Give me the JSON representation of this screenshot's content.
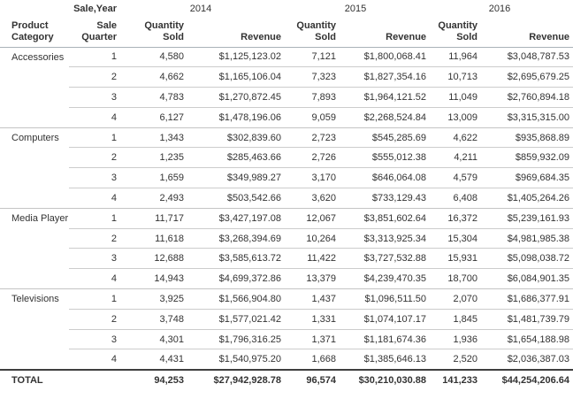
{
  "colors": {
    "text": "#333333",
    "grid_line": "#cccccc",
    "category_line": "#c4c4c4",
    "header_rule": "#a9b2b8",
    "total_rule": "#3f3f3f",
    "bg": "#ffffff"
  },
  "chart_data": {
    "type": "table",
    "row_dimension": "Product Category",
    "column_dimension": "Sale,Year",
    "measures": [
      "Quantity Sold",
      "Revenue"
    ],
    "years": [
      "2014",
      "2015",
      "2016"
    ],
    "headers": {
      "sale_year": "Sale,Year",
      "product_category": "Product\nCategory",
      "sale_quarter": "Sale\nQuarter",
      "quantity_sold": "Quantity\nSold",
      "revenue": "Revenue"
    },
    "categories": [
      {
        "name": "Accessories",
        "rows": [
          {
            "quarter": "1",
            "cells": [
              "4,580",
              "$1,125,123.02",
              "7,121",
              "$1,800,068.41",
              "11,964",
              "$3,048,787.53"
            ]
          },
          {
            "quarter": "2",
            "cells": [
              "4,662",
              "$1,165,106.04",
              "7,323",
              "$1,827,354.16",
              "10,713",
              "$2,695,679.25"
            ]
          },
          {
            "quarter": "3",
            "cells": [
              "4,783",
              "$1,270,872.45",
              "7,893",
              "$1,964,121.52",
              "11,049",
              "$2,760,894.18"
            ]
          },
          {
            "quarter": "4",
            "cells": [
              "6,127",
              "$1,478,196.06",
              "9,059",
              "$2,268,524.84",
              "13,009",
              "$3,315,315.00"
            ]
          }
        ]
      },
      {
        "name": "Computers",
        "rows": [
          {
            "quarter": "1",
            "cells": [
              "1,343",
              "$302,839.60",
              "2,723",
              "$545,285.69",
              "4,622",
              "$935,868.89"
            ]
          },
          {
            "quarter": "2",
            "cells": [
              "1,235",
              "$285,463.66",
              "2,726",
              "$555,012.38",
              "4,211",
              "$859,932.09"
            ]
          },
          {
            "quarter": "3",
            "cells": [
              "1,659",
              "$349,989.27",
              "3,170",
              "$646,064.08",
              "4,579",
              "$969,684.35"
            ]
          },
          {
            "quarter": "4",
            "cells": [
              "2,493",
              "$503,542.66",
              "3,620",
              "$733,129.43",
              "6,408",
              "$1,405,264.26"
            ]
          }
        ]
      },
      {
        "name": "Media Player",
        "rows": [
          {
            "quarter": "1",
            "cells": [
              "11,717",
              "$3,427,197.08",
              "12,067",
              "$3,851,602.64",
              "16,372",
              "$5,239,161.93"
            ]
          },
          {
            "quarter": "2",
            "cells": [
              "11,618",
              "$3,268,394.69",
              "10,264",
              "$3,313,925.34",
              "15,304",
              "$4,981,985.38"
            ]
          },
          {
            "quarter": "3",
            "cells": [
              "12,688",
              "$3,585,613.72",
              "11,422",
              "$3,727,532.88",
              "15,931",
              "$5,098,038.72"
            ]
          },
          {
            "quarter": "4",
            "cells": [
              "14,943",
              "$4,699,372.86",
              "13,379",
              "$4,239,470.35",
              "18,700",
              "$6,084,901.35"
            ]
          }
        ]
      },
      {
        "name": "Televisions",
        "rows": [
          {
            "quarter": "1",
            "cells": [
              "3,925",
              "$1,566,904.80",
              "1,437",
              "$1,096,511.50",
              "2,070",
              "$1,686,377.91"
            ]
          },
          {
            "quarter": "2",
            "cells": [
              "3,748",
              "$1,577,021.42",
              "1,331",
              "$1,074,107.17",
              "1,845",
              "$1,481,739.79"
            ]
          },
          {
            "quarter": "3",
            "cells": [
              "4,301",
              "$1,796,316.25",
              "1,371",
              "$1,181,674.36",
              "1,936",
              "$1,654,188.98"
            ]
          },
          {
            "quarter": "4",
            "cells": [
              "4,431",
              "$1,540,975.20",
              "1,668",
              "$1,385,646.13",
              "2,520",
              "$2,036,387.03"
            ]
          }
        ]
      }
    ],
    "total": {
      "label": "TOTAL",
      "cells": [
        "94,253",
        "$27,942,928.78",
        "96,574",
        "$30,210,030.88",
        "141,233",
        "$44,254,206.64"
      ]
    }
  }
}
